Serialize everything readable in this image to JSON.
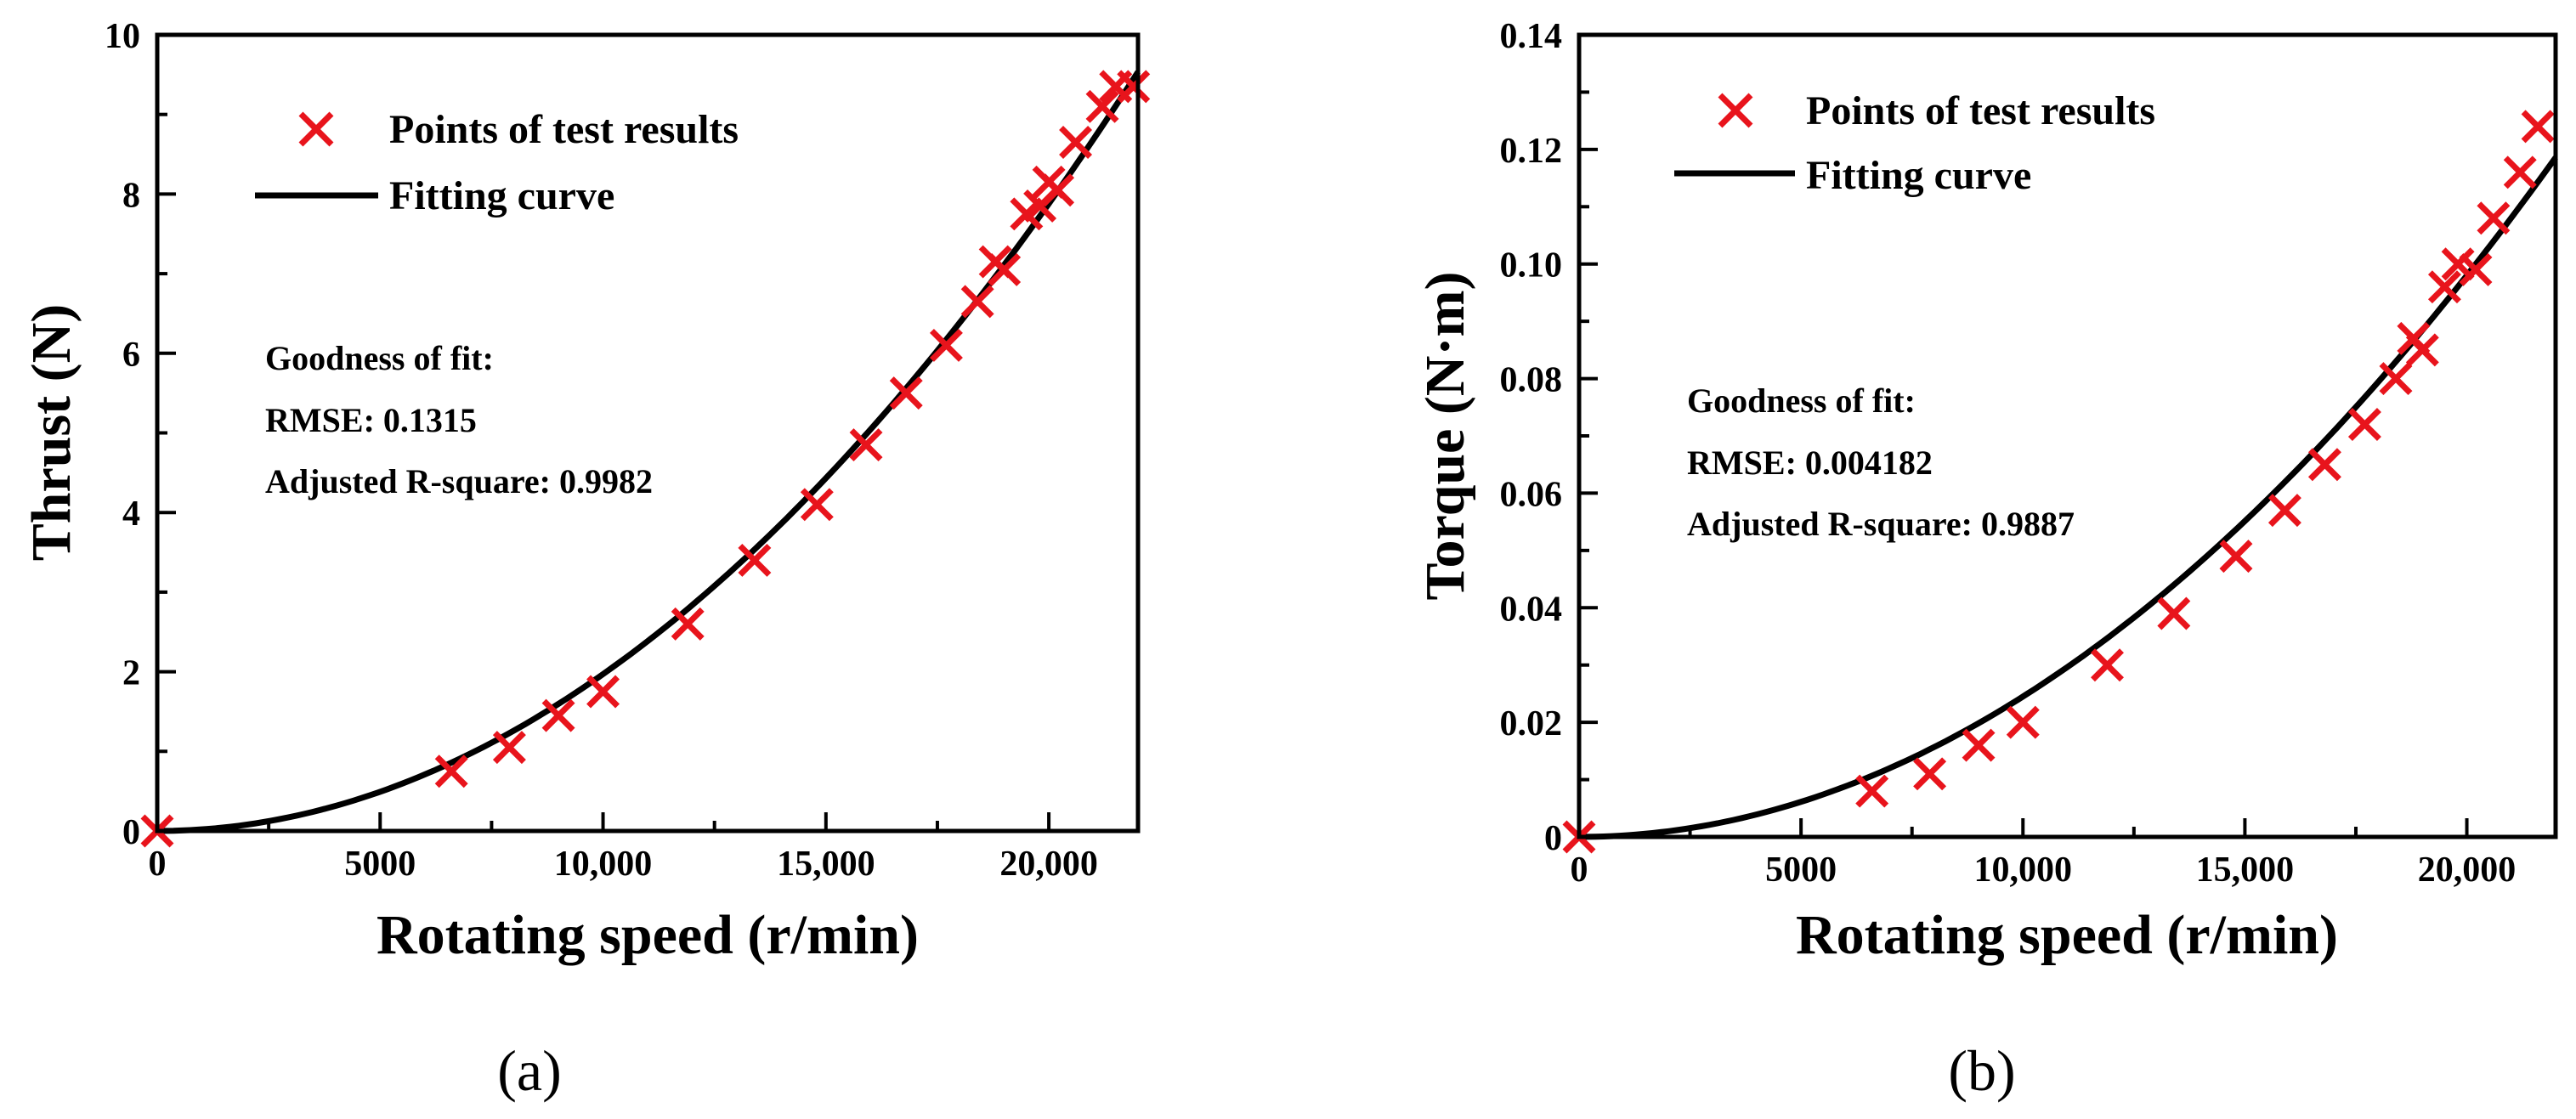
{
  "chart_data": [
    {
      "type": "scatter",
      "panel_label": "(a)",
      "xlabel": "Rotating speed (r/min)",
      "ylabel": "Thrust (N)",
      "xlim": [
        0,
        22000
      ],
      "ylim": [
        0,
        10
      ],
      "x_ticks": [
        0,
        5000,
        10000,
        15000,
        20000
      ],
      "x_tick_labels": [
        "0",
        "5000",
        "10,000",
        "15,000",
        "20,000"
      ],
      "y_ticks": [
        0,
        2,
        4,
        6,
        8,
        10
      ],
      "y_tick_labels": [
        "0",
        "2",
        "4",
        "6",
        "8",
        "10"
      ],
      "legend": {
        "position": "top-left",
        "points_label": "Points of test results",
        "curve_label": "Fitting curve"
      },
      "annotation": [
        "Goodness of fit:",
        "RMSE: 0.1315",
        "Adjusted R-square: 0.9982"
      ],
      "series": [
        {
          "name": "Points of test results",
          "marker": "x",
          "color": "#e8141c",
          "points": [
            [
              0,
              0
            ],
            [
              6600,
              0.75
            ],
            [
              7900,
              1.05
            ],
            [
              9000,
              1.45
            ],
            [
              10000,
              1.75
            ],
            [
              11900,
              2.6
            ],
            [
              13400,
              3.4
            ],
            [
              14800,
              4.1
            ],
            [
              15900,
              4.85
            ],
            [
              16800,
              5.5
            ],
            [
              17700,
              6.1
            ],
            [
              18400,
              6.65
            ],
            [
              18800,
              7.15
            ],
            [
              19000,
              7.05
            ],
            [
              19500,
              7.75
            ],
            [
              19800,
              7.85
            ],
            [
              20000,
              8.15
            ],
            [
              20200,
              8.05
            ],
            [
              20600,
              8.65
            ],
            [
              21200,
              9.1
            ],
            [
              21500,
              9.35
            ],
            [
              21900,
              9.35
            ]
          ]
        },
        {
          "name": "Fitting curve",
          "type": "line",
          "color": "#000000",
          "model": "y = a * x^2",
          "coefficient": 1.97e-08,
          "x_range": [
            0,
            22000
          ]
        }
      ]
    },
    {
      "type": "scatter",
      "panel_label": "(b)",
      "xlabel": "Rotating speed (r/min)",
      "ylabel": "Torque (N·m)",
      "xlim": [
        0,
        22000
      ],
      "ylim": [
        0,
        0.14
      ],
      "x_ticks": [
        0,
        5000,
        10000,
        15000,
        20000
      ],
      "x_tick_labels": [
        "0",
        "5000",
        "10,000",
        "15,000",
        "20,000"
      ],
      "y_ticks": [
        0,
        0.02,
        0.04,
        0.06,
        0.08,
        0.1,
        0.12,
        0.14
      ],
      "y_tick_labels": [
        "0",
        "0.02",
        "0.04",
        "0.06",
        "0.08",
        "0.10",
        "0.12",
        "0.14"
      ],
      "legend": {
        "position": "top-left",
        "points_label": "Points of test results",
        "curve_label": "Fitting curve"
      },
      "annotation": [
        "Goodness of fit:",
        "RMSE: 0.004182",
        "Adjusted R-square: 0.9887"
      ],
      "series": [
        {
          "name": "Points of test results",
          "marker": "x",
          "color": "#e8141c",
          "points": [
            [
              0,
              0
            ],
            [
              6600,
              0.008
            ],
            [
              7900,
              0.011
            ],
            [
              9000,
              0.016
            ],
            [
              10000,
              0.02
            ],
            [
              11900,
              0.03
            ],
            [
              13400,
              0.039
            ],
            [
              14800,
              0.049
            ],
            [
              15900,
              0.057
            ],
            [
              16800,
              0.065
            ],
            [
              17700,
              0.072
            ],
            [
              18400,
              0.08
            ],
            [
              18800,
              0.087
            ],
            [
              19000,
              0.085
            ],
            [
              19500,
              0.096
            ],
            [
              19800,
              0.1
            ],
            [
              20200,
              0.099
            ],
            [
              20600,
              0.108
            ],
            [
              21200,
              0.116
            ],
            [
              21600,
              0.124
            ]
          ]
        },
        {
          "name": "Fitting curve",
          "type": "line",
          "color": "#000000",
          "model": "y = a * x^2",
          "coefficient": 2.45e-10,
          "x_range": [
            0,
            22000
          ]
        }
      ]
    }
  ]
}
